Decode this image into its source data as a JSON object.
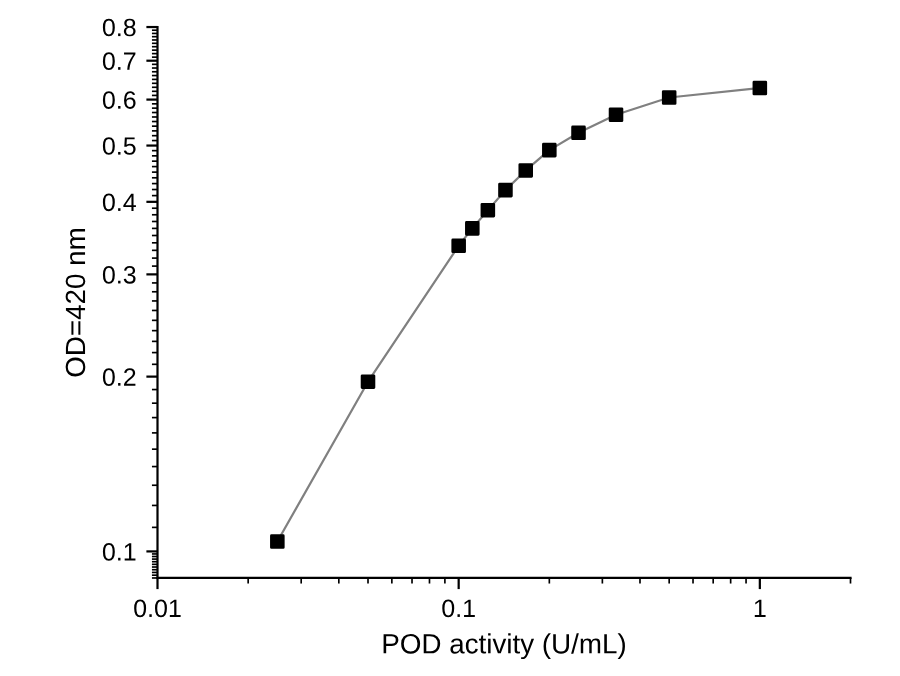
{
  "chart_data": {
    "type": "scatter",
    "xlabel": "POD activity (U/mL)",
    "ylabel": "OD=420 nm",
    "log": "xy",
    "marker": "square",
    "xlim": [
      0.01,
      2
    ],
    "ylim": [
      0.09,
      0.8
    ],
    "xticks": [
      0.01,
      0.1,
      1
    ],
    "yticks": [
      0.1,
      0.2,
      0.3,
      0.4,
      0.5,
      0.6,
      0.7,
      0.8
    ],
    "grid": false,
    "legend": false,
    "series": [
      {
        "type": "line",
        "color": "#808080",
        "marker": "none",
        "x": [
          0.025,
          0.05,
          0.1,
          0.111,
          0.125,
          0.143,
          0.167,
          0.2,
          0.25,
          0.333,
          0.5,
          1
        ],
        "values": [
          0.104,
          0.196,
          0.336,
          0.36,
          0.387,
          0.419,
          0.453,
          0.491,
          0.526,
          0.565,
          0.605,
          0.628
        ]
      },
      {
        "color": "#000000",
        "x": [
          0.025,
          0.05,
          0.1,
          0.111,
          0.125,
          0.143,
          0.167,
          0.2,
          0.25,
          0.333,
          0.5,
          1
        ],
        "values": [
          0.104,
          0.196,
          0.336,
          0.36,
          0.387,
          0.419,
          0.453,
          0.491,
          0.526,
          0.565,
          0.605,
          0.628
        ]
      }
    ]
  }
}
